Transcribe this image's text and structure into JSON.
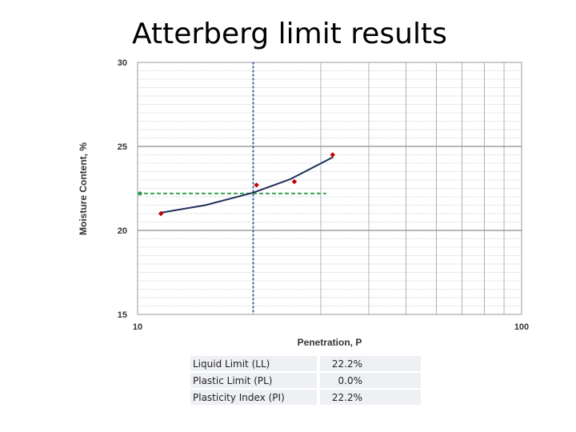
{
  "slide": {
    "title": "Atterberg limit results"
  },
  "chart_data": {
    "type": "scatter",
    "title": "",
    "xlabel": "Penetration, P",
    "ylabel": "Moisture Content, %",
    "xscale": "log",
    "xlim": [
      10,
      100
    ],
    "ylim": [
      15,
      30
    ],
    "x_tick_labels": [
      "10",
      "100"
    ],
    "y_tick_labels": [
      "15",
      "20",
      "25",
      "30"
    ],
    "grid": true,
    "series": [
      {
        "type": "scatter",
        "color": "#c00000",
        "points": [
          [
            11.5,
            21.0
          ],
          [
            20.4,
            22.7
          ],
          [
            25.6,
            22.9
          ],
          [
            32.2,
            24.5
          ]
        ]
      },
      {
        "type": "line",
        "color": "#1f2d5a",
        "points": [
          [
            11.5,
            21.05
          ],
          [
            15,
            21.5
          ],
          [
            20,
            22.25
          ],
          [
            25,
            23.05
          ],
          [
            32.2,
            24.35
          ]
        ]
      }
    ],
    "reference_lines": [
      {
        "orientation": "vertical",
        "x": 20,
        "color": "#1f5fa8",
        "style": "dotted"
      },
      {
        "orientation": "horizontal",
        "y": 22.2,
        "x_end": 31,
        "color": "#2e9e4a",
        "style": "dashed"
      }
    ]
  },
  "results": [
    {
      "label": "Liquid Limit (LL)",
      "value": "22.2%"
    },
    {
      "label": "Plastic Limit (PL)",
      "value": "0.0%"
    },
    {
      "label": "Plasticity Index (PI)",
      "value": "22.2%"
    }
  ]
}
